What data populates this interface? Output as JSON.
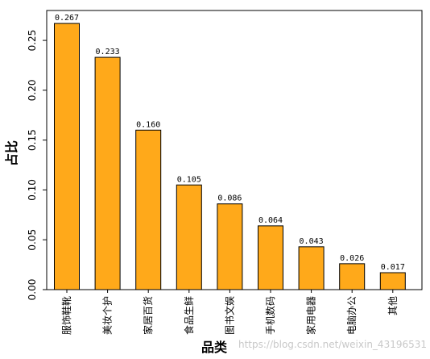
{
  "chart_data": {
    "type": "bar",
    "categories": [
      "服饰鞋靴",
      "美妆个护",
      "家居百货",
      "食品生鲜",
      "图书文娱",
      "手机数码",
      "家用电器",
      "电脑办公",
      "其他"
    ],
    "values": [
      0.267,
      0.233,
      0.16,
      0.105,
      0.086,
      0.064,
      0.043,
      0.026,
      0.017
    ],
    "value_labels": [
      "0.267",
      "0.233",
      "0.160",
      "0.105",
      "0.086",
      "0.064",
      "0.043",
      "0.026",
      "0.017"
    ],
    "title": "",
    "xlabel": "品类",
    "ylabel": "占比",
    "ylim": [
      0,
      0.28
    ],
    "yticks": [
      0.0,
      0.05,
      0.1,
      0.15,
      0.2,
      0.25
    ],
    "ytick_labels": [
      "0.00",
      "0.05",
      "0.10",
      "0.15",
      "0.20",
      "0.25"
    ],
    "bar_color": "#FFA91A",
    "edge_color": "#000000",
    "grid": false
  },
  "watermark": "https://blog.csdn.net/weixin_43196531"
}
